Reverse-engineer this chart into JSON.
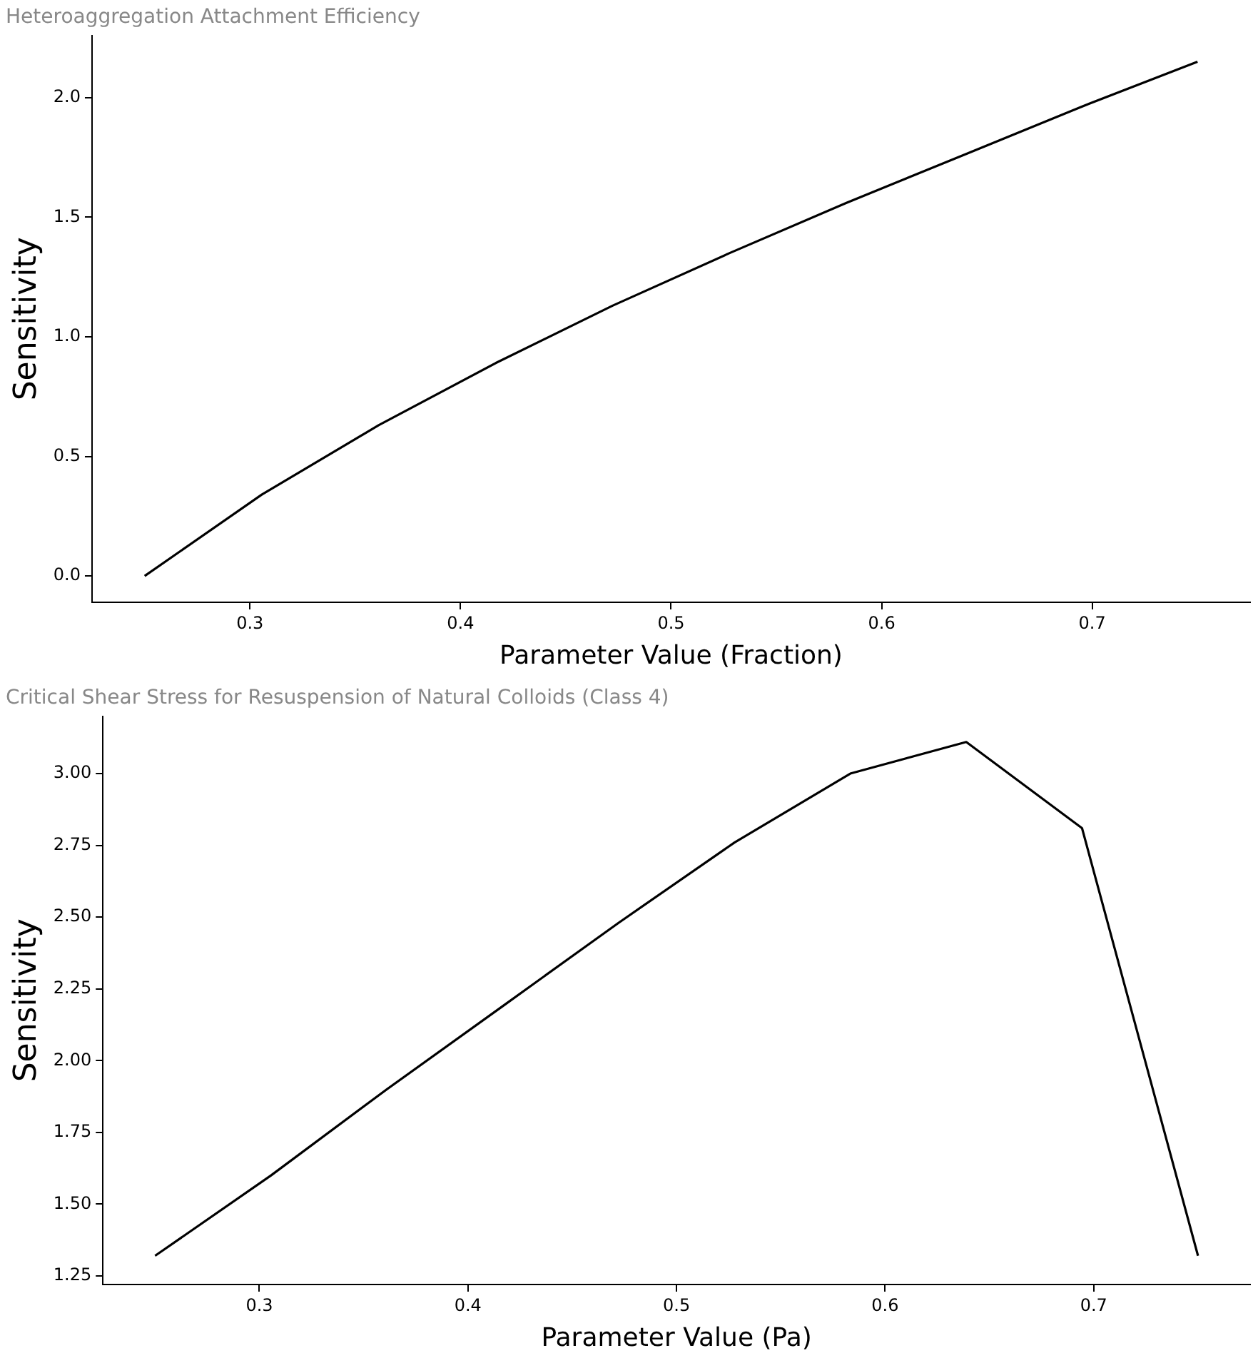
{
  "chart_data": [
    {
      "type": "line",
      "title": "Heteroaggregation Attachment Efficiency",
      "xlabel": "Parameter Value (Fraction)",
      "ylabel": "Sensitivity",
      "x": [
        0.25,
        0.3056,
        0.3611,
        0.4167,
        0.4722,
        0.5278,
        0.5833,
        0.6389,
        0.6944,
        0.75
      ],
      "series": [
        {
          "color": "#000000",
          "values": [
            0,
            0.34,
            0.63,
            0.89,
            1.13,
            1.35,
            1.56,
            1.76,
            1.96,
            2.15
          ]
        }
      ],
      "xlim": [
        0.225,
        0.775
      ],
      "xticks": [
        0.3,
        0.4,
        0.5,
        0.6,
        0.7
      ],
      "ylim": [
        -0.11,
        2.26
      ],
      "yticks": [
        {
          "value": 0,
          "label": "0.0"
        },
        0.5,
        {
          "value": 1,
          "label": "1.0"
        },
        1.5,
        {
          "value": 2,
          "label": "2.0"
        }
      ],
      "grid": false,
      "legend": false,
      "marker": "none",
      "line_style": "solid"
    },
    {
      "type": "line",
      "title": "Critical Shear Stress for Resuspension of Natural Colloids (Class 4)",
      "xlabel": "Parameter Value (Pa)",
      "ylabel": "Sensitivity",
      "x": [
        0.25,
        0.3056,
        0.3611,
        0.4167,
        0.4722,
        0.5278,
        0.5833,
        0.6389,
        0.6944,
        0.75
      ],
      "series": [
        {
          "color": "#000000",
          "values": [
            1.32,
            1.6,
            1.9,
            2.19,
            2.48,
            2.76,
            3.0,
            3.11,
            2.81,
            1.32
          ]
        }
      ],
      "xlim": [
        0.225,
        0.775
      ],
      "xticks": [
        0.3,
        0.4,
        0.5,
        0.6,
        0.7
      ],
      "ylim": [
        1.22,
        3.2
      ],
      "yticks": [
        1.25,
        {
          "value": 1.5,
          "label": "1.50"
        },
        1.75,
        {
          "value": 2,
          "label": "2.00"
        },
        2.25,
        {
          "value": 2.5,
          "label": "2.50"
        },
        2.75,
        {
          "value": 3,
          "label": "3.00"
        }
      ],
      "grid": false,
      "legend": false,
      "marker": "none",
      "line_style": "solid"
    }
  ]
}
